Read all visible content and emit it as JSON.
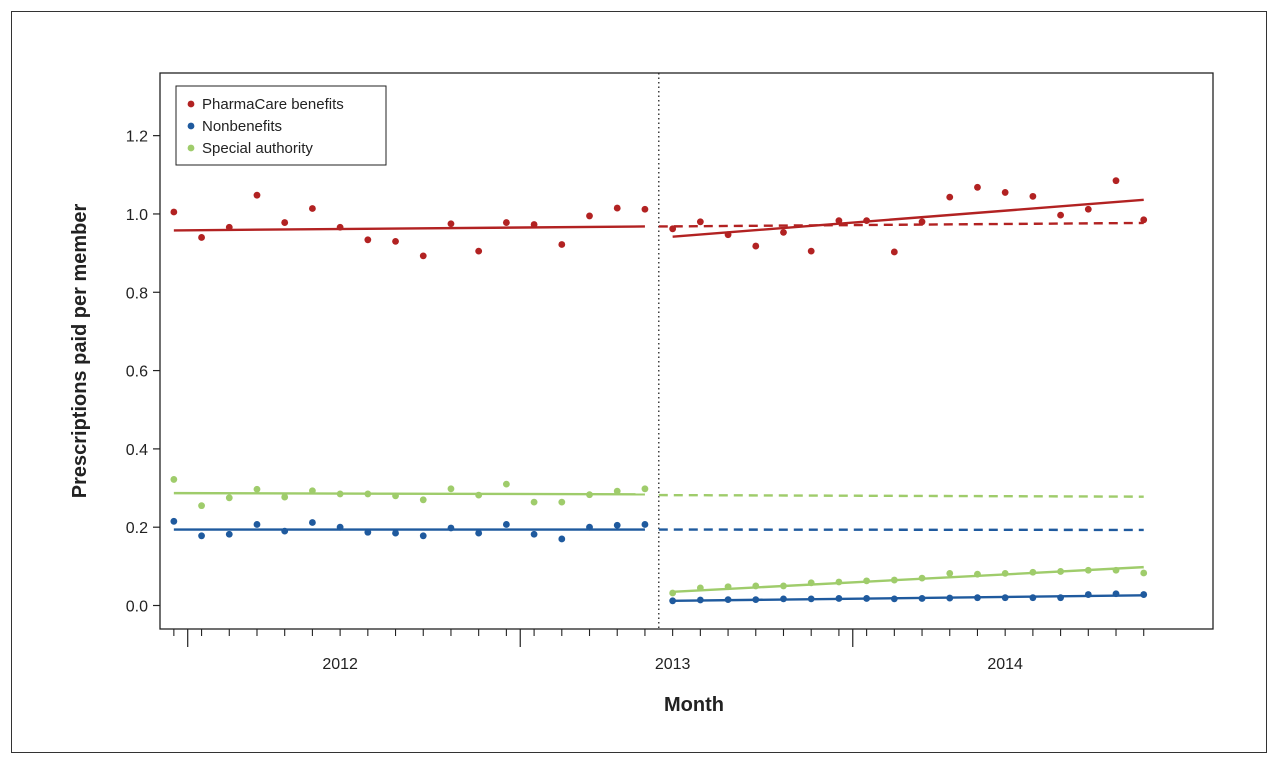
{
  "chart_data": {
    "type": "scatter",
    "title": "",
    "xlabel": "Month",
    "ylabel": "Prescriptions paid per member",
    "ylim": [
      -0.06,
      1.36
    ],
    "yticks": [
      0.0,
      0.2,
      0.4,
      0.6,
      0.8,
      1.0,
      1.2
    ],
    "ytick_labels": [
      "0.0",
      "0.2",
      "0.4",
      "0.6",
      "0.8",
      "1.0",
      "1.2"
    ],
    "xlim": [
      0.5,
      38.5
    ],
    "x_year_labels": [
      {
        "label": "2012",
        "x": 7
      },
      {
        "label": "2013",
        "x": 19
      },
      {
        "label": "2014",
        "x": 31
      }
    ],
    "year_boundaries": [
      1.5,
      13.5,
      25.5
    ],
    "intervention_x": 18.5,
    "grid": false,
    "legend_position": "top-left",
    "series": [
      {
        "name": "PharmaCare benefits",
        "color": "#b22222",
        "x": [
          1,
          2,
          3,
          4,
          5,
          6,
          7,
          8,
          9,
          10,
          11,
          12,
          13,
          14,
          15,
          16,
          17,
          18,
          19,
          20,
          21,
          22,
          23,
          24,
          25,
          26,
          27,
          28,
          29,
          30,
          31,
          32,
          33,
          34,
          35,
          36
        ],
        "values": [
          1.005,
          0.94,
          0.966,
          1.048,
          0.978,
          1.014,
          0.966,
          0.934,
          0.93,
          0.893,
          0.975,
          0.905,
          0.978,
          0.973,
          0.922,
          0.995,
          1.015,
          1.012,
          0.962,
          0.98,
          0.947,
          0.918,
          0.953,
          0.905,
          0.983,
          0.983,
          0.903,
          0.98,
          1.043,
          1.068,
          1.055,
          1.045,
          0.997,
          1.012,
          1.085,
          0.985
        ],
        "fit_pre": [
          [
            1,
            0.958
          ],
          [
            18,
            0.968
          ]
        ],
        "fit_post": [
          [
            19,
            0.942
          ],
          [
            36,
            1.036
          ]
        ],
        "counterfactual": [
          [
            18.5,
            0.968
          ],
          [
            36,
            0.977
          ]
        ]
      },
      {
        "name": "Nonbenefits",
        "color": "#1f5a9e",
        "x": [
          1,
          2,
          3,
          4,
          5,
          6,
          7,
          8,
          9,
          10,
          11,
          12,
          13,
          14,
          15,
          16,
          17,
          18,
          19,
          20,
          21,
          22,
          23,
          24,
          25,
          26,
          27,
          28,
          29,
          30,
          31,
          32,
          33,
          34,
          35,
          36
        ],
        "values": [
          0.215,
          0.178,
          0.182,
          0.207,
          0.19,
          0.212,
          0.2,
          0.187,
          0.185,
          0.178,
          0.198,
          0.185,
          0.207,
          0.182,
          0.17,
          0.2,
          0.205,
          0.207,
          0.012,
          0.014,
          0.015,
          0.015,
          0.017,
          0.017,
          0.018,
          0.018,
          0.017,
          0.018,
          0.019,
          0.02,
          0.02,
          0.02,
          0.02,
          0.028,
          0.03,
          0.028
        ],
        "fit_pre": [
          [
            1,
            0.194
          ],
          [
            18,
            0.194
          ]
        ],
        "fit_post": [
          [
            19,
            0.012
          ],
          [
            36,
            0.026
          ]
        ],
        "counterfactual": [
          [
            18.5,
            0.194
          ],
          [
            36,
            0.193
          ]
        ]
      },
      {
        "name": "Special authority",
        "color": "#9fcc6b",
        "x": [
          1,
          2,
          3,
          4,
          5,
          6,
          7,
          8,
          9,
          10,
          11,
          12,
          13,
          14,
          15,
          16,
          17,
          18,
          19,
          20,
          21,
          22,
          23,
          24,
          25,
          26,
          27,
          28,
          29,
          30,
          31,
          32,
          33,
          34,
          35,
          36
        ],
        "values": [
          0.322,
          0.255,
          0.275,
          0.297,
          0.277,
          0.293,
          0.285,
          0.285,
          0.28,
          0.27,
          0.298,
          0.282,
          0.31,
          0.264,
          0.264,
          0.283,
          0.292,
          0.298,
          0.032,
          0.045,
          0.048,
          0.05,
          0.05,
          0.058,
          0.06,
          0.063,
          0.065,
          0.07,
          0.082,
          0.08,
          0.082,
          0.085,
          0.087,
          0.09,
          0.09,
          0.083
        ],
        "fit_pre": [
          [
            1,
            0.287
          ],
          [
            18,
            0.284
          ]
        ],
        "fit_post": [
          [
            19,
            0.035
          ],
          [
            36,
            0.098
          ]
        ],
        "counterfactual": [
          [
            18.5,
            0.282
          ],
          [
            36,
            0.278
          ]
        ]
      }
    ]
  }
}
